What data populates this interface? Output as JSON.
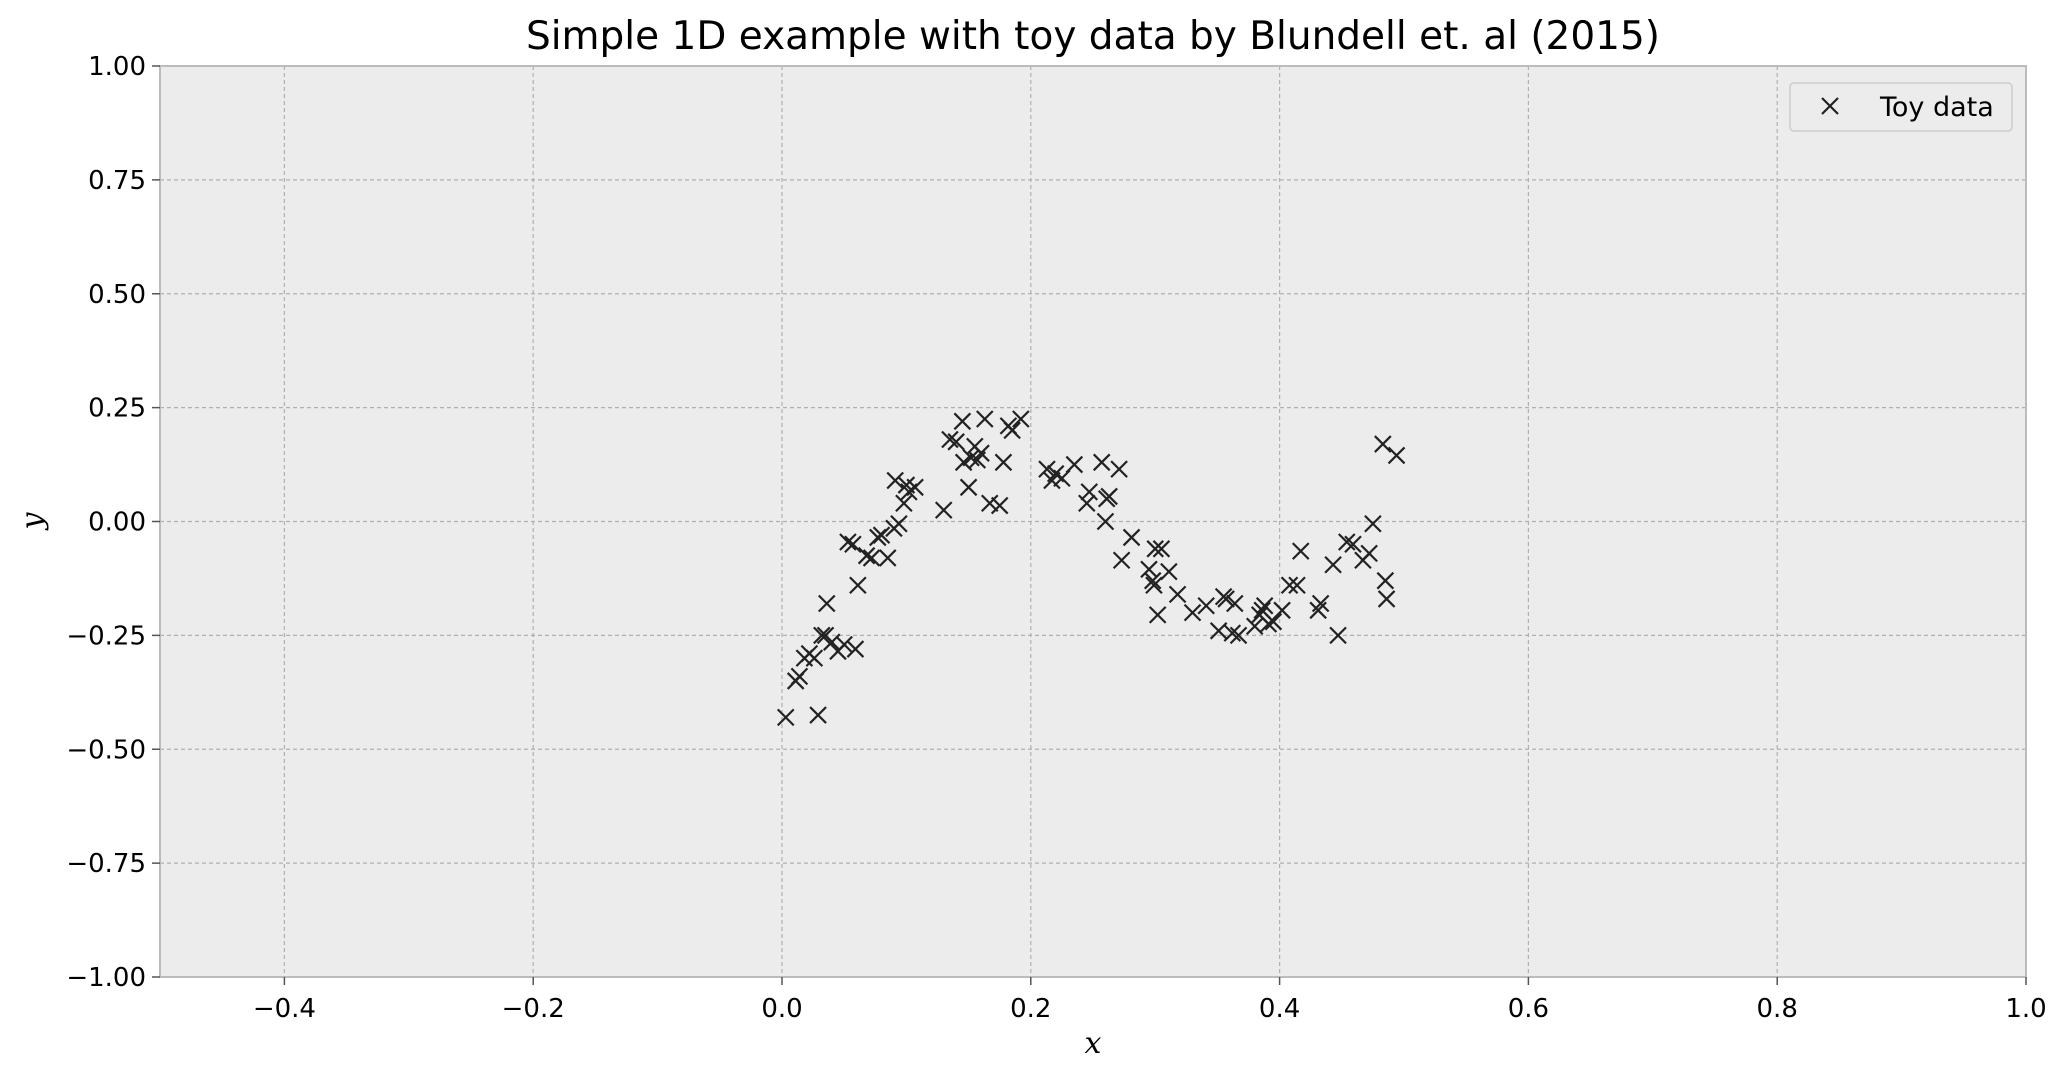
{
  "chart_data": {
    "type": "scatter",
    "title": "Simple 1D example with toy data by Blundell et. al (2015)",
    "xlabel": "x",
    "ylabel": "y",
    "xlim": [
      -0.5,
      1.0
    ],
    "ylim": [
      -1.0,
      1.0
    ],
    "x_ticks": [
      -0.4,
      -0.2,
      0.0,
      0.2,
      0.4,
      0.6,
      0.8,
      1.0
    ],
    "x_tick_labels": [
      "−0.4",
      "−0.2",
      "0.0",
      "0.2",
      "0.4",
      "0.6",
      "0.8",
      "1.0"
    ],
    "y_ticks": [
      1.0,
      0.75,
      0.5,
      0.25,
      0.0,
      -0.25,
      -0.5,
      -0.75,
      -1.0
    ],
    "y_tick_labels": [
      "1.00",
      "0.75",
      "0.50",
      "0.25",
      "0.00",
      "−0.25",
      "−0.50",
      "−0.75",
      "−1.00"
    ],
    "grid": true,
    "legend_position": "top-right",
    "marker": "x",
    "colors": {
      "plot_background": "#ececec",
      "grid": "#b0b0b0",
      "spine": "#bcbcbc",
      "marker": "#222222"
    },
    "series": [
      {
        "name": "Toy data",
        "points": [
          [
            0.003,
            -0.43
          ],
          [
            0.011,
            -0.35
          ],
          [
            0.014,
            -0.34
          ],
          [
            0.018,
            -0.3
          ],
          [
            0.022,
            -0.29
          ],
          [
            0.026,
            -0.3
          ],
          [
            0.029,
            -0.425
          ],
          [
            0.032,
            -0.25
          ],
          [
            0.035,
            -0.25
          ],
          [
            0.036,
            -0.18
          ],
          [
            0.04,
            -0.265
          ],
          [
            0.045,
            -0.285
          ],
          [
            0.05,
            -0.27
          ],
          [
            0.053,
            -0.045
          ],
          [
            0.057,
            -0.05
          ],
          [
            0.059,
            -0.28
          ],
          [
            0.061,
            -0.14
          ],
          [
            0.068,
            -0.075
          ],
          [
            0.072,
            -0.08
          ],
          [
            0.077,
            -0.035
          ],
          [
            0.08,
            -0.03
          ],
          [
            0.085,
            -0.08
          ],
          [
            0.09,
            -0.015
          ],
          [
            0.091,
            0.09
          ],
          [
            0.094,
            -0.005
          ],
          [
            0.098,
            0.04
          ],
          [
            0.1,
            0.08
          ],
          [
            0.102,
            0.065
          ],
          [
            0.107,
            0.075
          ],
          [
            0.13,
            0.025
          ],
          [
            0.135,
            0.18
          ],
          [
            0.14,
            0.175
          ],
          [
            0.145,
            0.22
          ],
          [
            0.146,
            0.13
          ],
          [
            0.15,
            0.075
          ],
          [
            0.152,
            0.14
          ],
          [
            0.155,
            0.165
          ],
          [
            0.157,
            0.135
          ],
          [
            0.16,
            0.15
          ],
          [
            0.163,
            0.225
          ],
          [
            0.167,
            0.04
          ],
          [
            0.175,
            0.035
          ],
          [
            0.178,
            0.13
          ],
          [
            0.182,
            0.21
          ],
          [
            0.185,
            0.2
          ],
          [
            0.192,
            0.225
          ],
          [
            0.213,
            0.115
          ],
          [
            0.217,
            0.09
          ],
          [
            0.22,
            0.105
          ],
          [
            0.225,
            0.095
          ],
          [
            0.235,
            0.125
          ],
          [
            0.245,
            0.04
          ],
          [
            0.247,
            0.065
          ],
          [
            0.257,
            0.13
          ],
          [
            0.26,
            0.0
          ],
          [
            0.261,
            0.05
          ],
          [
            0.263,
            0.055
          ],
          [
            0.271,
            0.115
          ],
          [
            0.273,
            -0.085
          ],
          [
            0.281,
            -0.035
          ],
          [
            0.295,
            -0.105
          ],
          [
            0.298,
            -0.13
          ],
          [
            0.299,
            -0.14
          ],
          [
            0.3,
            -0.06
          ],
          [
            0.302,
            -0.205
          ],
          [
            0.305,
            -0.06
          ],
          [
            0.311,
            -0.11
          ],
          [
            0.318,
            -0.16
          ],
          [
            0.33,
            -0.2
          ],
          [
            0.341,
            -0.185
          ],
          [
            0.351,
            -0.24
          ],
          [
            0.355,
            -0.165
          ],
          [
            0.357,
            -0.17
          ],
          [
            0.362,
            -0.245
          ],
          [
            0.364,
            -0.18
          ],
          [
            0.367,
            -0.25
          ],
          [
            0.38,
            -0.23
          ],
          [
            0.384,
            -0.205
          ],
          [
            0.386,
            -0.195
          ],
          [
            0.388,
            -0.185
          ],
          [
            0.391,
            -0.225
          ],
          [
            0.395,
            -0.22
          ],
          [
            0.402,
            -0.195
          ],
          [
            0.408,
            -0.14
          ],
          [
            0.414,
            -0.14
          ],
          [
            0.417,
            -0.065
          ],
          [
            0.431,
            -0.195
          ],
          [
            0.433,
            -0.18
          ],
          [
            0.443,
            -0.095
          ],
          [
            0.447,
            -0.25
          ],
          [
            0.454,
            -0.045
          ],
          [
            0.459,
            -0.05
          ],
          [
            0.467,
            -0.085
          ],
          [
            0.472,
            -0.07
          ],
          [
            0.475,
            -0.005
          ],
          [
            0.483,
            0.17
          ],
          [
            0.485,
            -0.13
          ],
          [
            0.486,
            -0.17
          ],
          [
            0.494,
            0.145
          ]
        ]
      }
    ]
  }
}
